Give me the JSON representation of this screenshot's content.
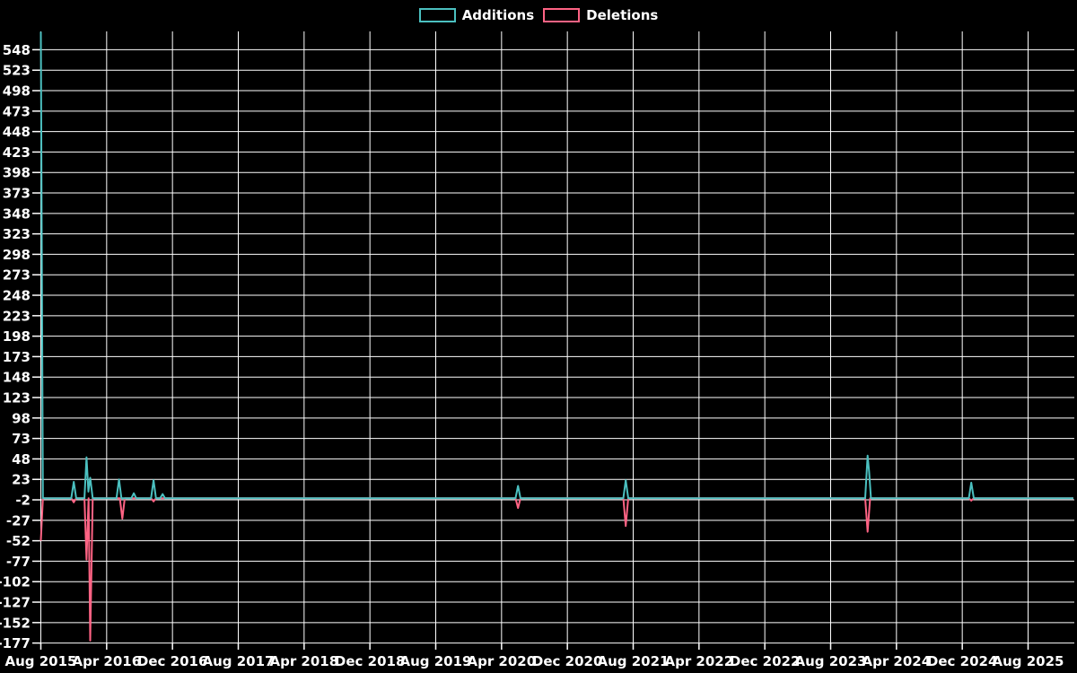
{
  "legend": {
    "items": [
      {
        "label": "Additions",
        "color": "#4bc0c0"
      },
      {
        "label": "Deletions",
        "color": "#ff6384"
      }
    ]
  },
  "chart_data": {
    "type": "line",
    "title": "",
    "background_color": "#000000",
    "grid_color": "#ffffff",
    "text_color": "#ffffff",
    "legend_position": "top-center",
    "grid": true,
    "x_axis": {
      "label": "",
      "tick_labels": [
        "Aug 2015",
        "Apr 2016",
        "Dec 2016",
        "Aug 2017",
        "Apr 2018",
        "Dec 2018",
        "Aug 2019",
        "Apr 2020",
        "Dec 2020",
        "Aug 2021",
        "Apr 2022",
        "Dec 2022",
        "Aug 2023",
        "Apr 2024",
        "Dec 2024",
        "Aug 2025"
      ],
      "months_between_ticks": 8,
      "start": "Aug 2015",
      "end": "Aug 2025",
      "months_total": 125.5
    },
    "y_axis": {
      "label": "",
      "min_tick": -177,
      "max_tick": 548,
      "step": 25,
      "tick_labels": [
        548,
        523,
        498,
        473,
        448,
        423,
        398,
        373,
        348,
        323,
        298,
        273,
        248,
        223,
        198,
        173,
        148,
        123,
        98,
        73,
        48,
        23,
        -2,
        -27,
        -52,
        -77,
        -102,
        -127,
        -152,
        -177
      ]
    },
    "series": [
      {
        "name": "Additions",
        "color": "#4bc0c0",
        "points_note": "pairs of [months_since_Aug_2015, value]",
        "points": [
          [
            0,
            570
          ],
          [
            0.25,
            0
          ],
          [
            3.7,
            0
          ],
          [
            4.0,
            20
          ],
          [
            4.3,
            0
          ],
          [
            5.3,
            0
          ],
          [
            5.55,
            50
          ],
          [
            5.78,
            8
          ],
          [
            6.0,
            25
          ],
          [
            6.3,
            0
          ],
          [
            9.2,
            0
          ],
          [
            9.5,
            23
          ],
          [
            9.8,
            0
          ],
          [
            11.0,
            0
          ],
          [
            11.3,
            6
          ],
          [
            11.6,
            0
          ],
          [
            13.4,
            0
          ],
          [
            13.7,
            22
          ],
          [
            14.0,
            0
          ],
          [
            14.5,
            0
          ],
          [
            14.8,
            5
          ],
          [
            15.1,
            0
          ],
          [
            57.7,
            0
          ],
          [
            58.0,
            15
          ],
          [
            58.3,
            0
          ],
          [
            70.8,
            0
          ],
          [
            71.1,
            22
          ],
          [
            71.4,
            0
          ],
          [
            100.2,
            0
          ],
          [
            100.5,
            52
          ],
          [
            100.68,
            32
          ],
          [
            100.9,
            0
          ],
          [
            112.8,
            0
          ],
          [
            113.1,
            19
          ],
          [
            113.4,
            0
          ],
          [
            125.5,
            0
          ]
        ]
      },
      {
        "name": "Deletions",
        "color": "#ff6384",
        "points_note": "pairs of [months_since_Aug_2015, value]",
        "points": [
          [
            0,
            -52
          ],
          [
            0.25,
            0
          ],
          [
            3.7,
            0
          ],
          [
            4.0,
            -5
          ],
          [
            4.3,
            0
          ],
          [
            5.3,
            0
          ],
          [
            5.55,
            -75
          ],
          [
            5.8,
            0
          ],
          [
            6.0,
            -174
          ],
          [
            6.3,
            0
          ],
          [
            9.6,
            0
          ],
          [
            9.9,
            -25
          ],
          [
            10.2,
            0
          ],
          [
            13.4,
            0
          ],
          [
            13.7,
            -4
          ],
          [
            14.0,
            0
          ],
          [
            57.7,
            0
          ],
          [
            58.0,
            -12
          ],
          [
            58.3,
            0
          ],
          [
            70.8,
            0
          ],
          [
            71.1,
            -34
          ],
          [
            71.4,
            0
          ],
          [
            100.2,
            0
          ],
          [
            100.5,
            -41
          ],
          [
            100.8,
            0
          ],
          [
            112.8,
            0
          ],
          [
            113.1,
            -3
          ],
          [
            113.4,
            0
          ],
          [
            125.5,
            0
          ]
        ]
      }
    ]
  }
}
